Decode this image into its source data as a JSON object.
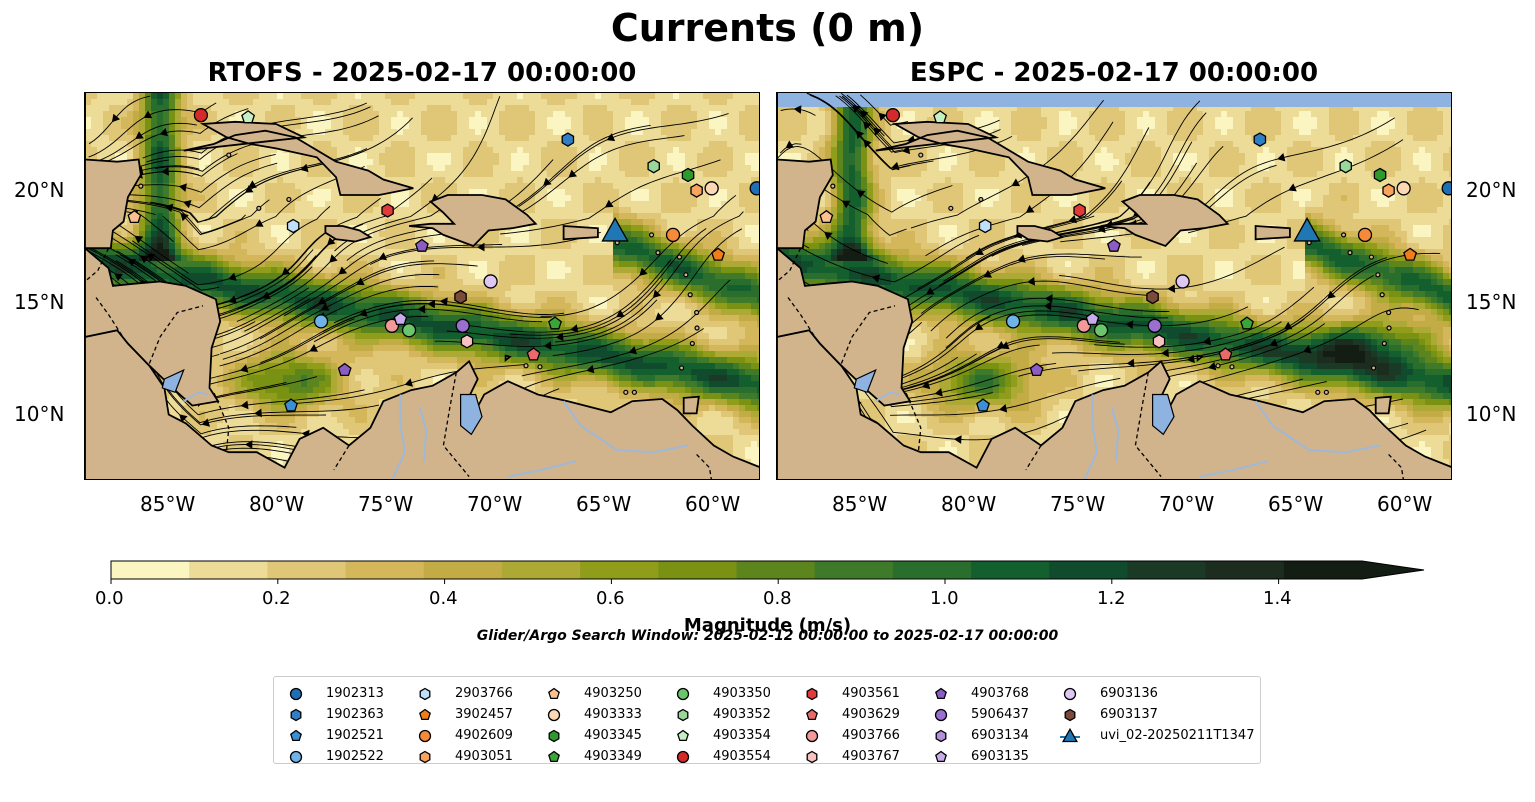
{
  "figure": {
    "title": "Currents (0 m)",
    "search_window": "Glider/Argo Search Window: 2025-02-12 00:00:00 to 2025-02-17 00:00:00"
  },
  "panels": [
    {
      "title": "RTOFS - 2025-02-17 00:00:00"
    },
    {
      "title": "ESPC - 2025-02-17 00:00:00"
    }
  ],
  "map_extent": {
    "lon_min": -89.5,
    "lon_max": -58.0,
    "lat_min": 7.0,
    "lat_max": 24.5
  },
  "lon_ticks": [
    -85,
    -80,
    -75,
    -70,
    -65,
    -60
  ],
  "lon_tick_labels": [
    "85°W",
    "80°W",
    "75°W",
    "70°W",
    "65°W",
    "60°W"
  ],
  "lat_ticks": [
    10,
    15,
    20
  ],
  "lat_tick_labels": [
    "10°N",
    "15°N",
    "20°N"
  ],
  "colorbar": {
    "label": "Magnitude (m/s)",
    "min": 0.0,
    "max": 1.5,
    "extend": "max",
    "ticks": [
      0.0,
      0.2,
      0.4,
      0.6,
      0.8,
      1.0,
      1.2,
      1.4
    ],
    "tick_labels": [
      "0.0",
      "0.2",
      "0.4",
      "0.6",
      "0.8",
      "1.0",
      "1.2",
      "1.4"
    ],
    "colors": [
      "#fbf5c1",
      "#ecdc98",
      "#e0c777",
      "#d3b75a",
      "#c3ab45",
      "#acaa35",
      "#8f9d1a",
      "#7a9214",
      "#5c851e",
      "#3f7a2a",
      "#2a6e2e",
      "#145f2e",
      "#0f4b2c",
      "#1b3a25",
      "#1c2d1f",
      "#131d14"
    ]
  },
  "colors": {
    "land": "#d2b48c",
    "lake": "#8fb3e0",
    "river": "#9fb8d8",
    "nodata_band": "#8fb3e0"
  },
  "legend": [
    {
      "id": "1902313",
      "marker": "circle",
      "color": "#1f6fb5"
    },
    {
      "id": "1902363",
      "marker": "hexagon",
      "color": "#2e7fc6"
    },
    {
      "id": "1902521",
      "marker": "pentagon",
      "color": "#3b8fd4"
    },
    {
      "id": "1902522",
      "marker": "circle",
      "color": "#6fb3e8"
    },
    {
      "id": "2903766",
      "marker": "hexagon",
      "color": "#bfe0fb"
    },
    {
      "id": "3902457",
      "marker": "pentagon",
      "color": "#f07d1a"
    },
    {
      "id": "4902609",
      "marker": "circle",
      "color": "#f58a3a"
    },
    {
      "id": "4903051",
      "marker": "hexagon",
      "color": "#f9a45e"
    },
    {
      "id": "4903250",
      "marker": "pentagon",
      "color": "#fbc08f"
    },
    {
      "id": "4903333",
      "marker": "circle",
      "color": "#fdd8b5"
    },
    {
      "id": "4903345",
      "marker": "hexagon",
      "color": "#2e9a2e"
    },
    {
      "id": "4903349",
      "marker": "pentagon",
      "color": "#3aa63a"
    },
    {
      "id": "4903350",
      "marker": "circle",
      "color": "#6cc46c"
    },
    {
      "id": "4903352",
      "marker": "hexagon",
      "color": "#98d898"
    },
    {
      "id": "4903354",
      "marker": "pentagon",
      "color": "#c4f0c4"
    },
    {
      "id": "4903554",
      "marker": "circle",
      "color": "#d42a2a"
    },
    {
      "id": "4903561",
      "marker": "hexagon",
      "color": "#e03a3a"
    },
    {
      "id": "4903629",
      "marker": "pentagon",
      "color": "#ea6a6a"
    },
    {
      "id": "4903766",
      "marker": "circle",
      "color": "#f29a9a"
    },
    {
      "id": "4903767",
      "marker": "hexagon",
      "color": "#f8c2c2"
    },
    {
      "id": "4903768",
      "marker": "pentagon",
      "color": "#8a5cc4"
    },
    {
      "id": "5906437",
      "marker": "circle",
      "color": "#9a6fd0"
    },
    {
      "id": "6903134",
      "marker": "hexagon",
      "color": "#b38fdc"
    },
    {
      "id": "6903135",
      "marker": "pentagon",
      "color": "#c9aaea"
    },
    {
      "id": "6903136",
      "marker": "circle",
      "color": "#ddc8f4"
    },
    {
      "id": "6903137",
      "marker": "hexagon",
      "color": "#7a4a3a"
    },
    {
      "id": "uvi_02-20250211T1347",
      "marker": "triangle",
      "color": "#1f78b4"
    }
  ],
  "platforms": [
    {
      "id": "4903554",
      "lon": -84.1,
      "lat": 23.5
    },
    {
      "id": "4903354",
      "lon": -81.9,
      "lat": 23.4
    },
    {
      "id": "1902363",
      "lon": -67.0,
      "lat": 22.4
    },
    {
      "id": "4903352",
      "lon": -63.0,
      "lat": 21.2
    },
    {
      "id": "4903345",
      "lon": -61.4,
      "lat": 20.8
    },
    {
      "id": "4903051",
      "lon": -61.0,
      "lat": 20.1
    },
    {
      "id": "4903333",
      "lon": -60.3,
      "lat": 20.2
    },
    {
      "id": "1902313",
      "lon": -58.2,
      "lat": 20.2
    },
    {
      "id": "4903250",
      "lon": -87.2,
      "lat": 18.9
    },
    {
      "id": "2903766",
      "lon": -79.8,
      "lat": 18.5
    },
    {
      "id": "4903561",
      "lon": -75.4,
      "lat": 19.2
    },
    {
      "id": "4902609",
      "lon": -62.1,
      "lat": 18.1
    },
    {
      "id": "3902457",
      "lon": -60.0,
      "lat": 17.2
    },
    {
      "id": "4903768",
      "lon": -73.8,
      "lat": 17.6
    },
    {
      "id": "6903136",
      "lon": -70.6,
      "lat": 16.0
    },
    {
      "id": "6903137",
      "lon": -72.0,
      "lat": 15.3
    },
    {
      "id": "1902522",
      "lon": -78.5,
      "lat": 14.2
    },
    {
      "id": "4903766",
      "lon": -75.2,
      "lat": 14.0
    },
    {
      "id": "4903350",
      "lon": -74.4,
      "lat": 13.8
    },
    {
      "id": "6903135",
      "lon": -74.8,
      "lat": 14.3
    },
    {
      "id": "5906437",
      "lon": -71.9,
      "lat": 14.0
    },
    {
      "id": "4903767",
      "lon": -71.7,
      "lat": 13.3
    },
    {
      "id": "4903349",
      "lon": -67.6,
      "lat": 14.1
    },
    {
      "id": "4903629",
      "lon": -68.6,
      "lat": 12.7
    },
    {
      "id": "4903768",
      "lon": -77.4,
      "lat": 12.0
    },
    {
      "id": "1902521",
      "lon": -79.9,
      "lat": 10.4
    }
  ],
  "glider": {
    "id": "uvi_02-20250211T1347",
    "lon": -64.8,
    "lat": 18.2
  }
}
